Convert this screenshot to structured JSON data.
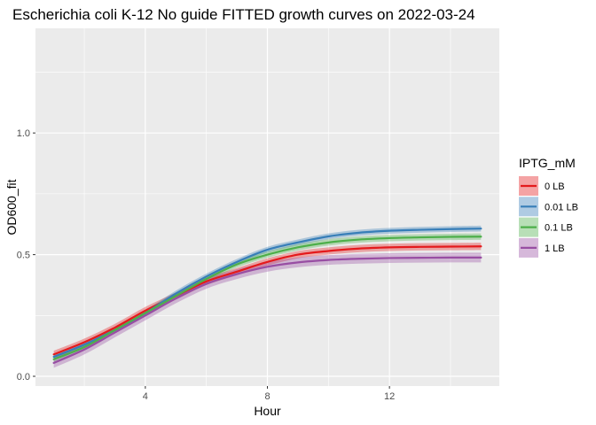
{
  "chart_data": {
    "type": "line",
    "title": "Escherichia coli K-12 No guide FITTED growth curves on 2022-03-24",
    "xlabel": "Hour",
    "ylabel": "OD600_fit",
    "xlim": [
      0.4,
      15.6
    ],
    "ylim": [
      -0.04,
      1.43
    ],
    "xticks": [
      4,
      8,
      12
    ],
    "xtick_labels": [
      "4",
      "8",
      "12"
    ],
    "yticks": [
      0.0,
      0.5,
      1.0
    ],
    "ytick_labels": [
      "0.0",
      "0.5",
      "1.0"
    ],
    "grid": true,
    "legend": {
      "title": "IPTG_mM",
      "position": "right"
    },
    "x": [
      1,
      2,
      3,
      4,
      5,
      6,
      7,
      8,
      9,
      10,
      11,
      12,
      13,
      14,
      15
    ],
    "series": [
      {
        "name": "0 LB",
        "color": "#E41A1C",
        "values": [
          0.09,
          0.14,
          0.2,
          0.27,
          0.33,
          0.39,
          0.43,
          0.47,
          0.5,
          0.515,
          0.525,
          0.53,
          0.532,
          0.533,
          0.534
        ],
        "band": 0.015
      },
      {
        "name": "0.01 LB",
        "color": "#377EB8",
        "values": [
          0.08,
          0.13,
          0.19,
          0.26,
          0.34,
          0.41,
          0.47,
          0.52,
          0.55,
          0.575,
          0.59,
          0.598,
          0.602,
          0.605,
          0.607
        ],
        "band": 0.012
      },
      {
        "name": "0.1 LB",
        "color": "#4DAF4A",
        "values": [
          0.07,
          0.12,
          0.19,
          0.26,
          0.33,
          0.4,
          0.46,
          0.5,
          0.53,
          0.55,
          0.562,
          0.568,
          0.571,
          0.573,
          0.574
        ],
        "band": 0.013
      },
      {
        "name": "1 LB",
        "color": "#984EA3",
        "values": [
          0.055,
          0.11,
          0.18,
          0.25,
          0.32,
          0.38,
          0.42,
          0.45,
          0.468,
          0.478,
          0.483,
          0.486,
          0.487,
          0.488,
          0.488
        ],
        "band": 0.02
      }
    ]
  }
}
